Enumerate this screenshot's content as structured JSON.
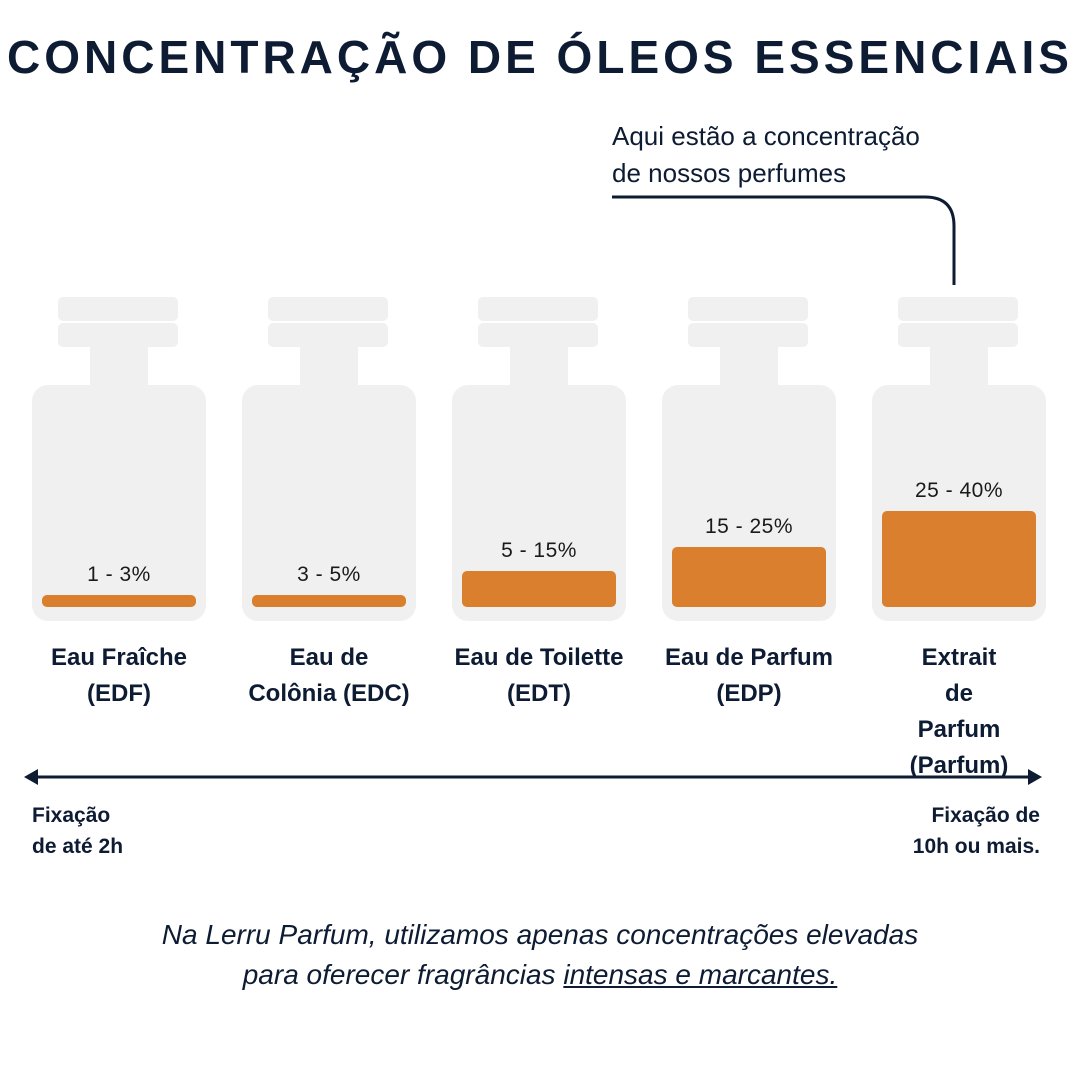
{
  "title": "CONCENTRAÇÃO DE ÓLEOS ESSENCIAIS",
  "callout": {
    "line1": "Aqui estão a concentração",
    "line2": "de nossos perfumes"
  },
  "colors": {
    "navy": "#0d1b33",
    "bottle": "#f0f0f0",
    "fill": "#d97f2e"
  },
  "chart_data": {
    "type": "bar",
    "categories": [
      "Eau Fraîche (EDF)",
      "Eau de Colônia (EDC)",
      "Eau de Toilette (EDT)",
      "Eau de Parfum (EDP)",
      "Extrait de Parfum (Parfum)"
    ],
    "ranges": [
      [
        1,
        3
      ],
      [
        3,
        5
      ],
      [
        5,
        15
      ],
      [
        15,
        25
      ],
      [
        25,
        40
      ]
    ],
    "values": [
      3,
      5,
      15,
      25,
      40
    ],
    "ylim": [
      0,
      40
    ]
  },
  "bottles": [
    {
      "pct": "1 - 3%",
      "label_lines": [
        "Eau Fraîche",
        "(EDF)"
      ]
    },
    {
      "pct": "3 - 5%",
      "label_lines": [
        "Eau de",
        "Colônia (EDC)"
      ]
    },
    {
      "pct": "5 - 15%",
      "label_lines": [
        "Eau de Toilette",
        "(EDT)"
      ]
    },
    {
      "pct": "15 - 25%",
      "label_lines": [
        "Eau de Parfum",
        "(EDP)"
      ]
    },
    {
      "pct": "25 - 40%",
      "label_lines": [
        "Extrait",
        "de",
        "Parfum",
        "(Parfum)"
      ]
    }
  ],
  "axis": {
    "left_line1": "Fixação",
    "left_line2": "de até 2h",
    "right_line1": "Fixação de",
    "right_line2": "10h ou mais."
  },
  "footer": {
    "line1": "Na Lerru Parfum, utilizamos apenas concentrações elevadas",
    "line2_plain": "para oferecer fragrâncias ",
    "line2_underlined": "intensas e marcantes."
  }
}
